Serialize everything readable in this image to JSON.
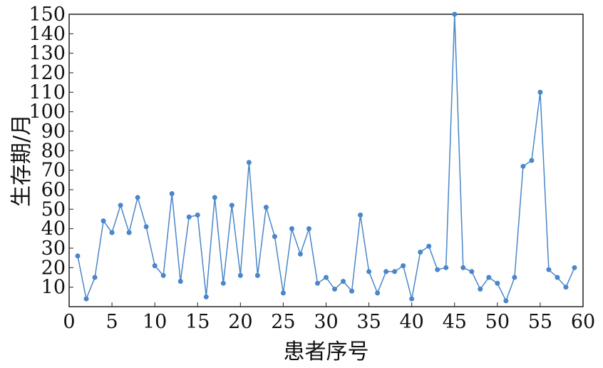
{
  "chart_data": {
    "type": "line",
    "title": "",
    "xlabel": "患者序号",
    "ylabel": "生存期/月",
    "xlim": [
      0,
      60
    ],
    "ylim": [
      0,
      150
    ],
    "x_ticks": [
      0,
      5,
      10,
      15,
      20,
      25,
      30,
      35,
      40,
      45,
      50,
      55,
      60
    ],
    "y_ticks": [
      10,
      20,
      30,
      40,
      50,
      60,
      70,
      80,
      90,
      100,
      110,
      120,
      130,
      140,
      150
    ],
    "grid": false,
    "series_color": "#4a86c8",
    "series": [
      {
        "x": [
          1,
          2,
          3,
          4,
          5,
          6,
          7,
          8,
          9,
          10,
          11,
          12,
          13,
          14,
          15,
          16,
          17,
          18,
          19,
          20,
          21,
          22,
          23,
          24,
          25,
          26,
          27,
          28,
          29,
          30,
          31,
          32,
          33,
          34,
          35,
          36,
          37,
          38,
          39,
          40,
          41,
          42,
          43,
          44,
          45,
          46,
          47,
          48,
          49,
          50,
          51,
          52,
          53,
          54,
          55,
          56,
          57,
          58,
          59
        ],
        "y": [
          26,
          4,
          15,
          44,
          38,
          52,
          38,
          56,
          41,
          21,
          16,
          58,
          13,
          46,
          47,
          5,
          56,
          12,
          52,
          16,
          74,
          16,
          51,
          36,
          7,
          40,
          27,
          40,
          12,
          15,
          9,
          13,
          8,
          47,
          18,
          7,
          18,
          18,
          21,
          4,
          28,
          31,
          19,
          20,
          150,
          20,
          18,
          9,
          15,
          12,
          3,
          15,
          72,
          75,
          110,
          19,
          15,
          10,
          20
        ]
      }
    ]
  }
}
